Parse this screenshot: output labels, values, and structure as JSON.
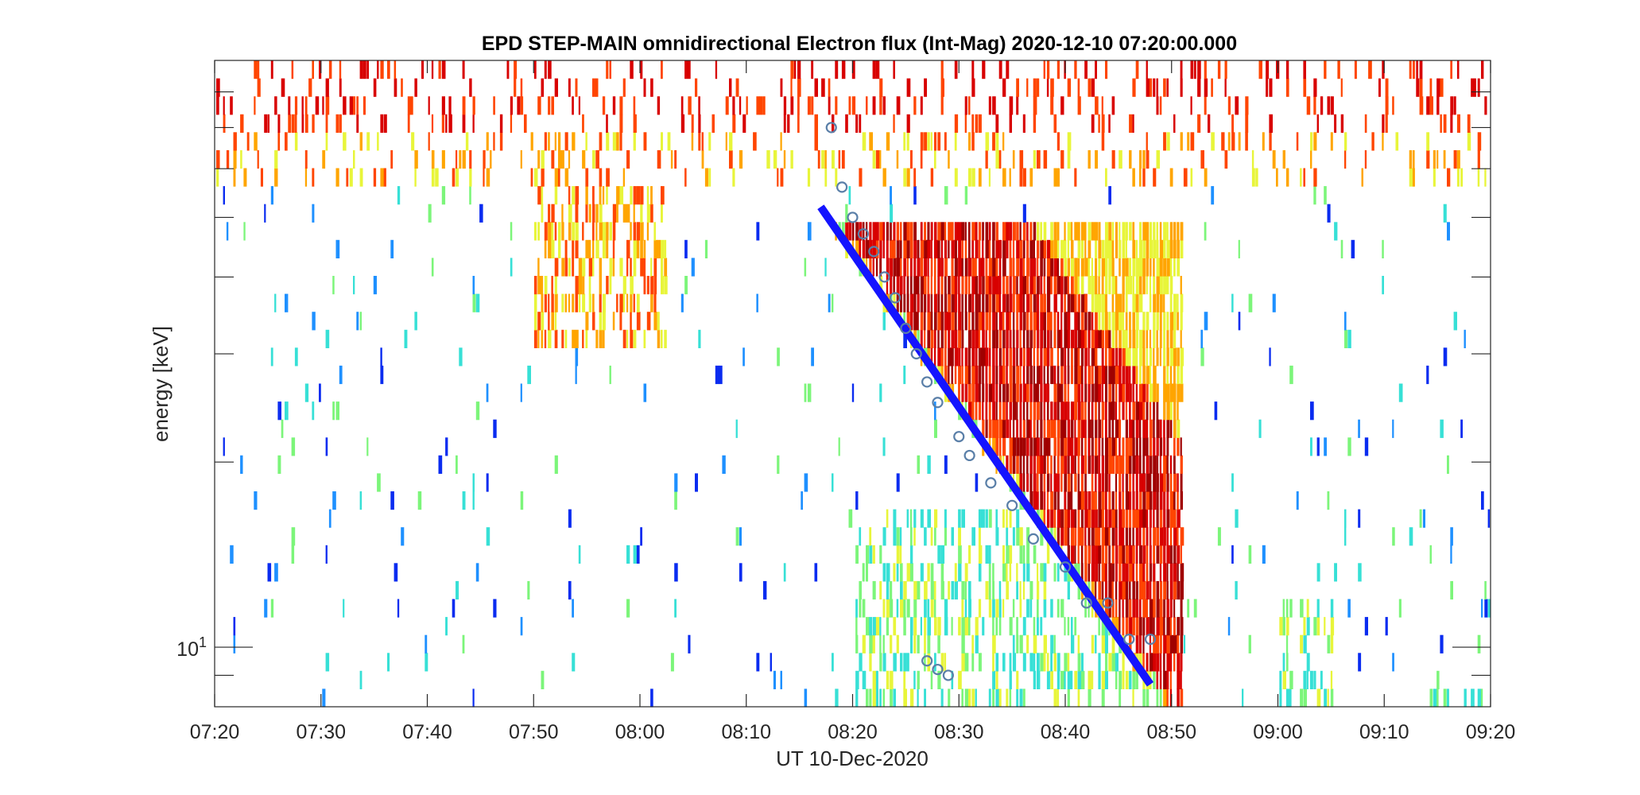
{
  "chart_data": {
    "type": "heatmap",
    "title": "EPD STEP-MAIN omnidirectional Electron flux (Int-Mag) 2020-12-10 07:20:00.000",
    "xlabel": "UT 10-Dec-2020",
    "ylabel": "energy [keV]",
    "x_tick_labels": [
      "07:20",
      "07:30",
      "07:40",
      "07:50",
      "08:00",
      "08:10",
      "08:20",
      "08:30",
      "08:40",
      "08:50",
      "09:00",
      "09:10",
      "09:20"
    ],
    "y_tick_labels": [
      {
        "base": "10",
        "exp": "1"
      }
    ],
    "y_scale": "log",
    "ylim_keV": [
      8,
      90
    ],
    "xlim": [
      "07:20",
      "09:20"
    ],
    "grid": false,
    "colormap": [
      "#0a2cf0",
      "#1e90ff",
      "#37e0d6",
      "#7cf57a",
      "#e8f53a",
      "#ffa500",
      "#ff4500",
      "#d80000",
      "#a00000"
    ],
    "velocity_dispersion_fit": {
      "color": "#1414ff",
      "start": {
        "time": "08:17",
        "energy_keV": 52
      },
      "end": {
        "time": "08:48",
        "energy_keV": 8.7
      }
    },
    "onset_points": [
      {
        "time": "08:18",
        "energy_keV": 70
      },
      {
        "time": "08:19",
        "energy_keV": 56
      },
      {
        "time": "08:20",
        "energy_keV": 50
      },
      {
        "time": "08:21",
        "energy_keV": 47
      },
      {
        "time": "08:22",
        "energy_keV": 44
      },
      {
        "time": "08:23",
        "energy_keV": 40
      },
      {
        "time": "08:24",
        "energy_keV": 37
      },
      {
        "time": "08:25",
        "energy_keV": 33
      },
      {
        "time": "08:26",
        "energy_keV": 30
      },
      {
        "time": "08:27",
        "energy_keV": 27
      },
      {
        "time": "08:28",
        "energy_keV": 25
      },
      {
        "time": "08:30",
        "energy_keV": 22
      },
      {
        "time": "08:31",
        "energy_keV": 20.5
      },
      {
        "time": "08:33",
        "energy_keV": 18.5
      },
      {
        "time": "08:35",
        "energy_keV": 17
      },
      {
        "time": "08:37",
        "energy_keV": 15
      },
      {
        "time": "08:40",
        "energy_keV": 13.5
      },
      {
        "time": "08:42",
        "energy_keV": 11.8
      },
      {
        "time": "08:44",
        "energy_keV": 11.8
      },
      {
        "time": "08:46",
        "energy_keV": 10.3
      },
      {
        "time": "08:48",
        "energy_keV": 10.3
      },
      {
        "time": "08:27",
        "energy_keV": 9.5
      },
      {
        "time": "08:28",
        "energy_keV": 9.2
      },
      {
        "time": "08:29",
        "energy_keV": 9.0
      }
    ]
  }
}
